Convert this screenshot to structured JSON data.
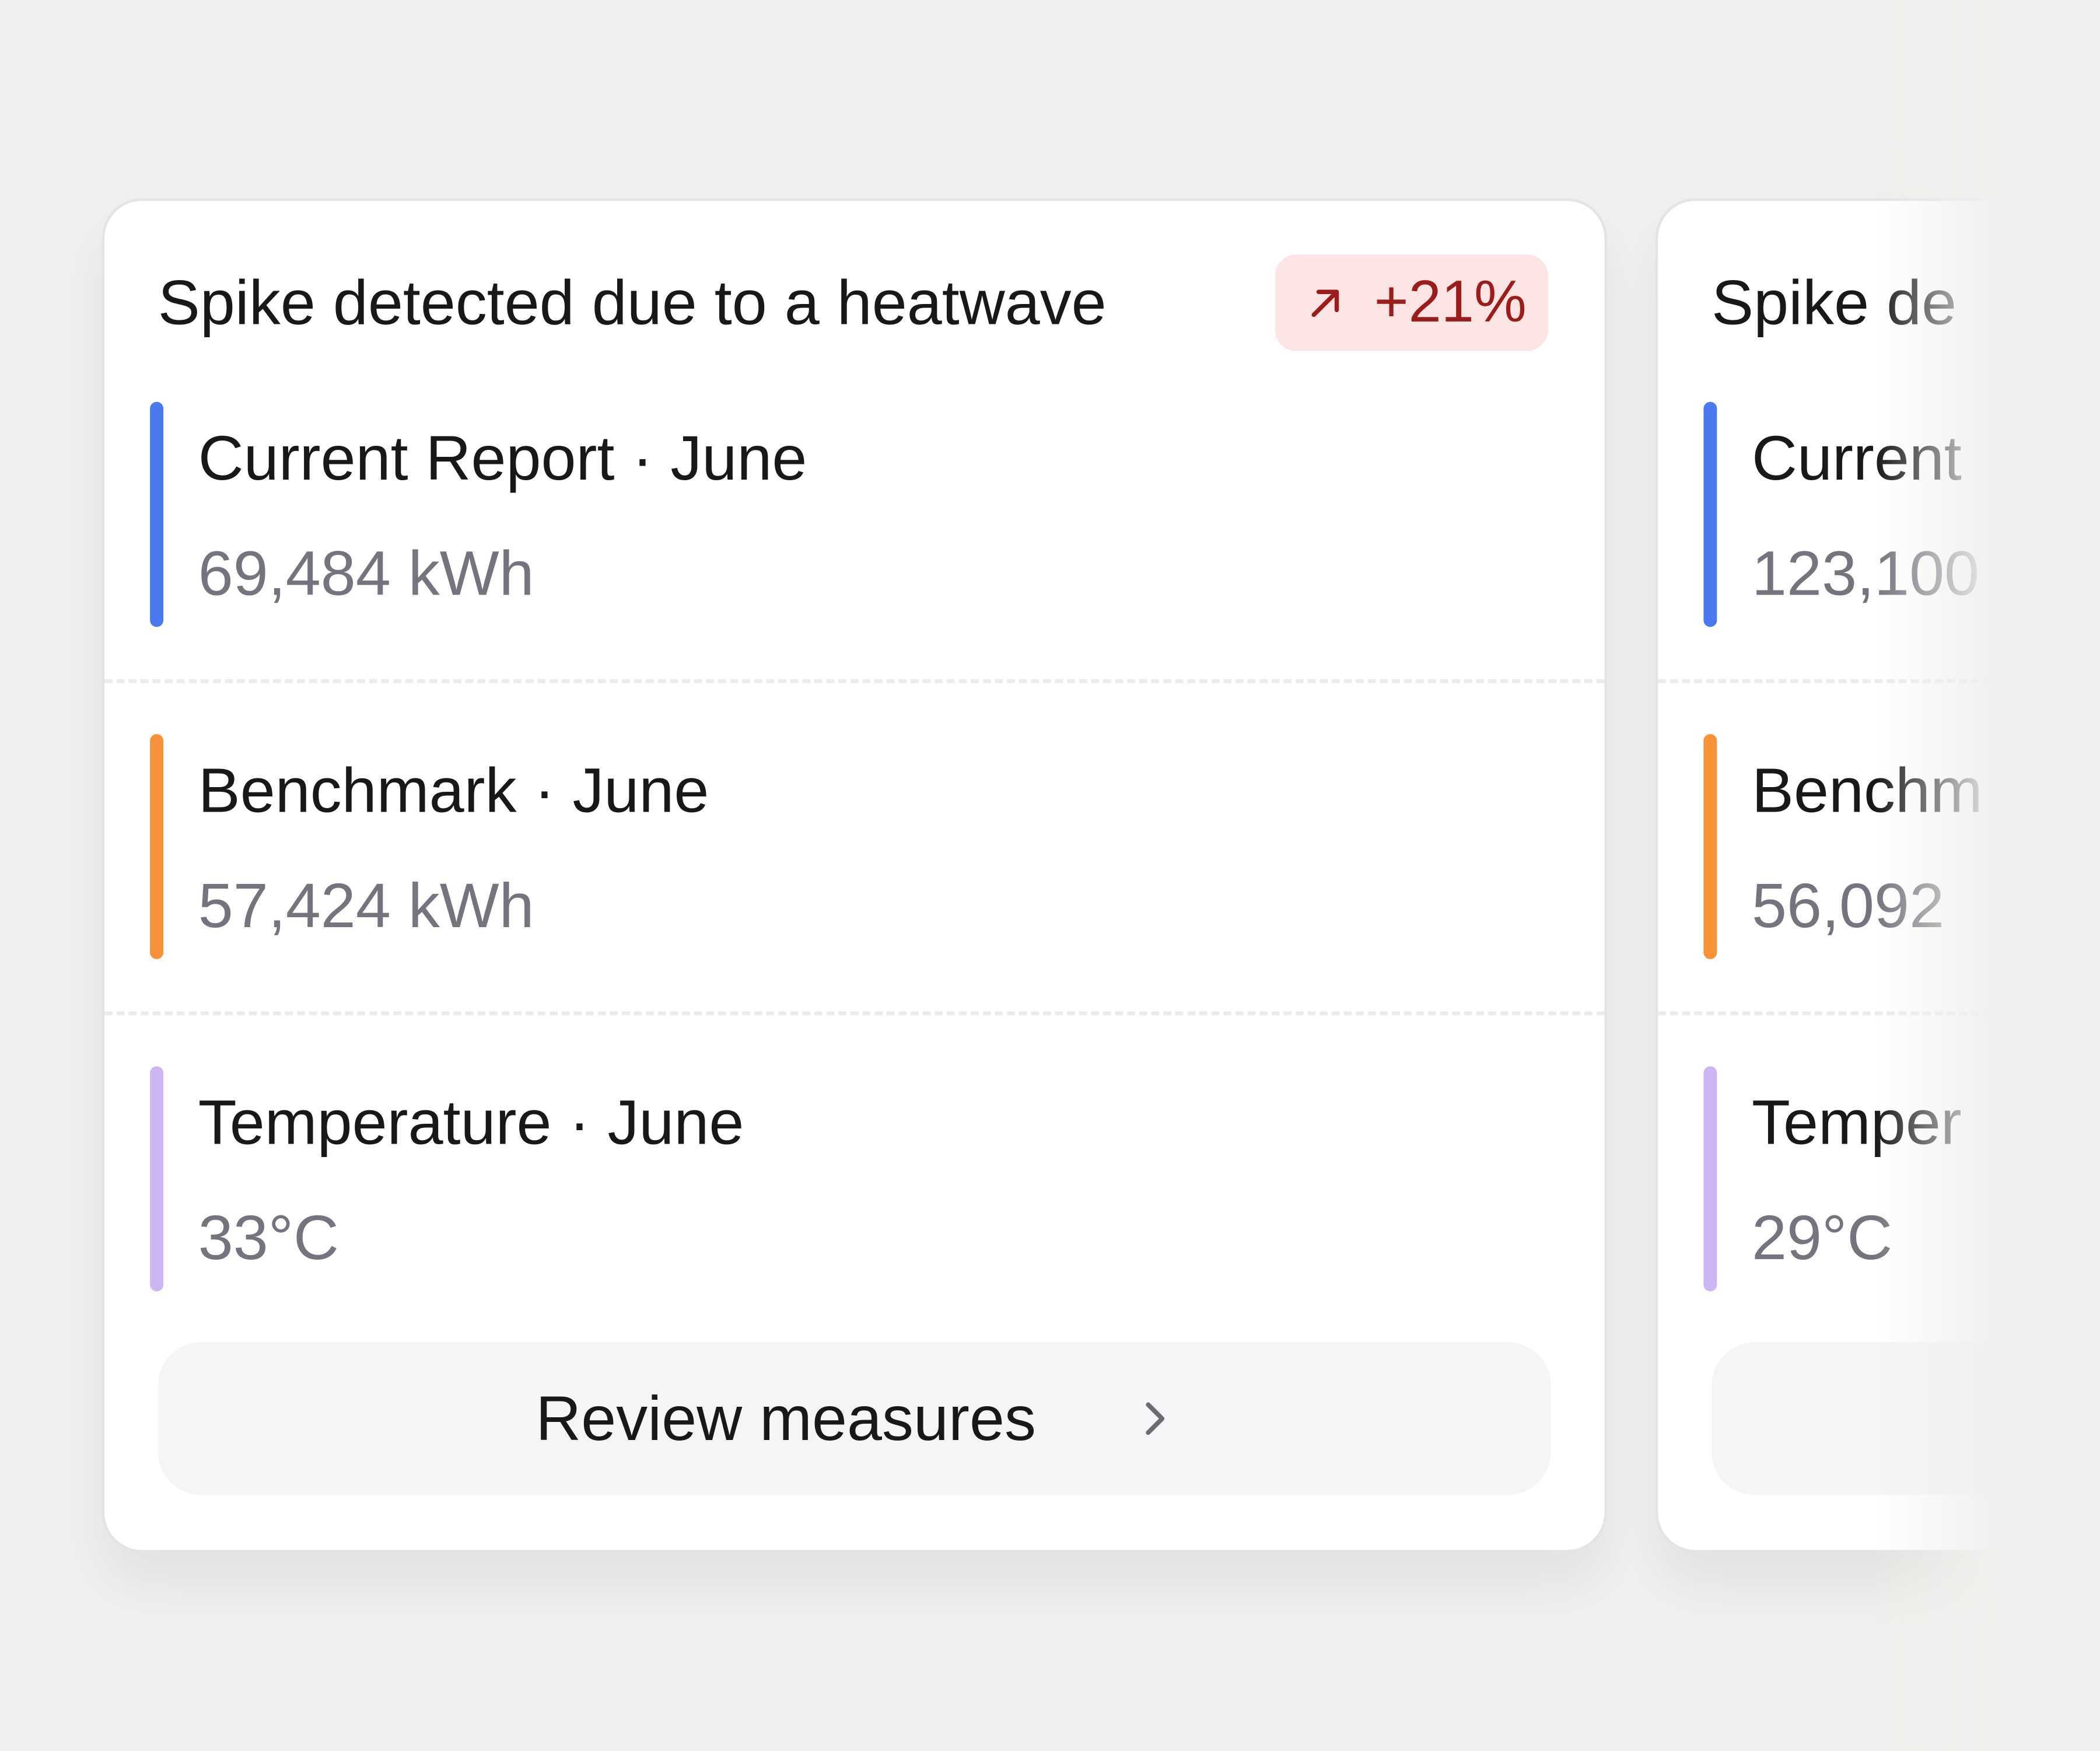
{
  "cards": [
    {
      "title": "Spike detected due to a heatwave",
      "badge": "+21%",
      "rows": [
        {
          "label": "Current Report · June",
          "value": "69,484 kWh"
        },
        {
          "label": "Benchmark · June",
          "value": "57,424 kWh"
        },
        {
          "label": "Temperature · June",
          "value": "33°C"
        }
      ],
      "button": "Review measures"
    },
    {
      "title": "Spike de",
      "rows": [
        {
          "label": "Current",
          "value": "123,100"
        },
        {
          "label": "Benchm",
          "value": "56,092"
        },
        {
          "label": "Temper",
          "value": "29°C"
        }
      ]
    }
  ]
}
